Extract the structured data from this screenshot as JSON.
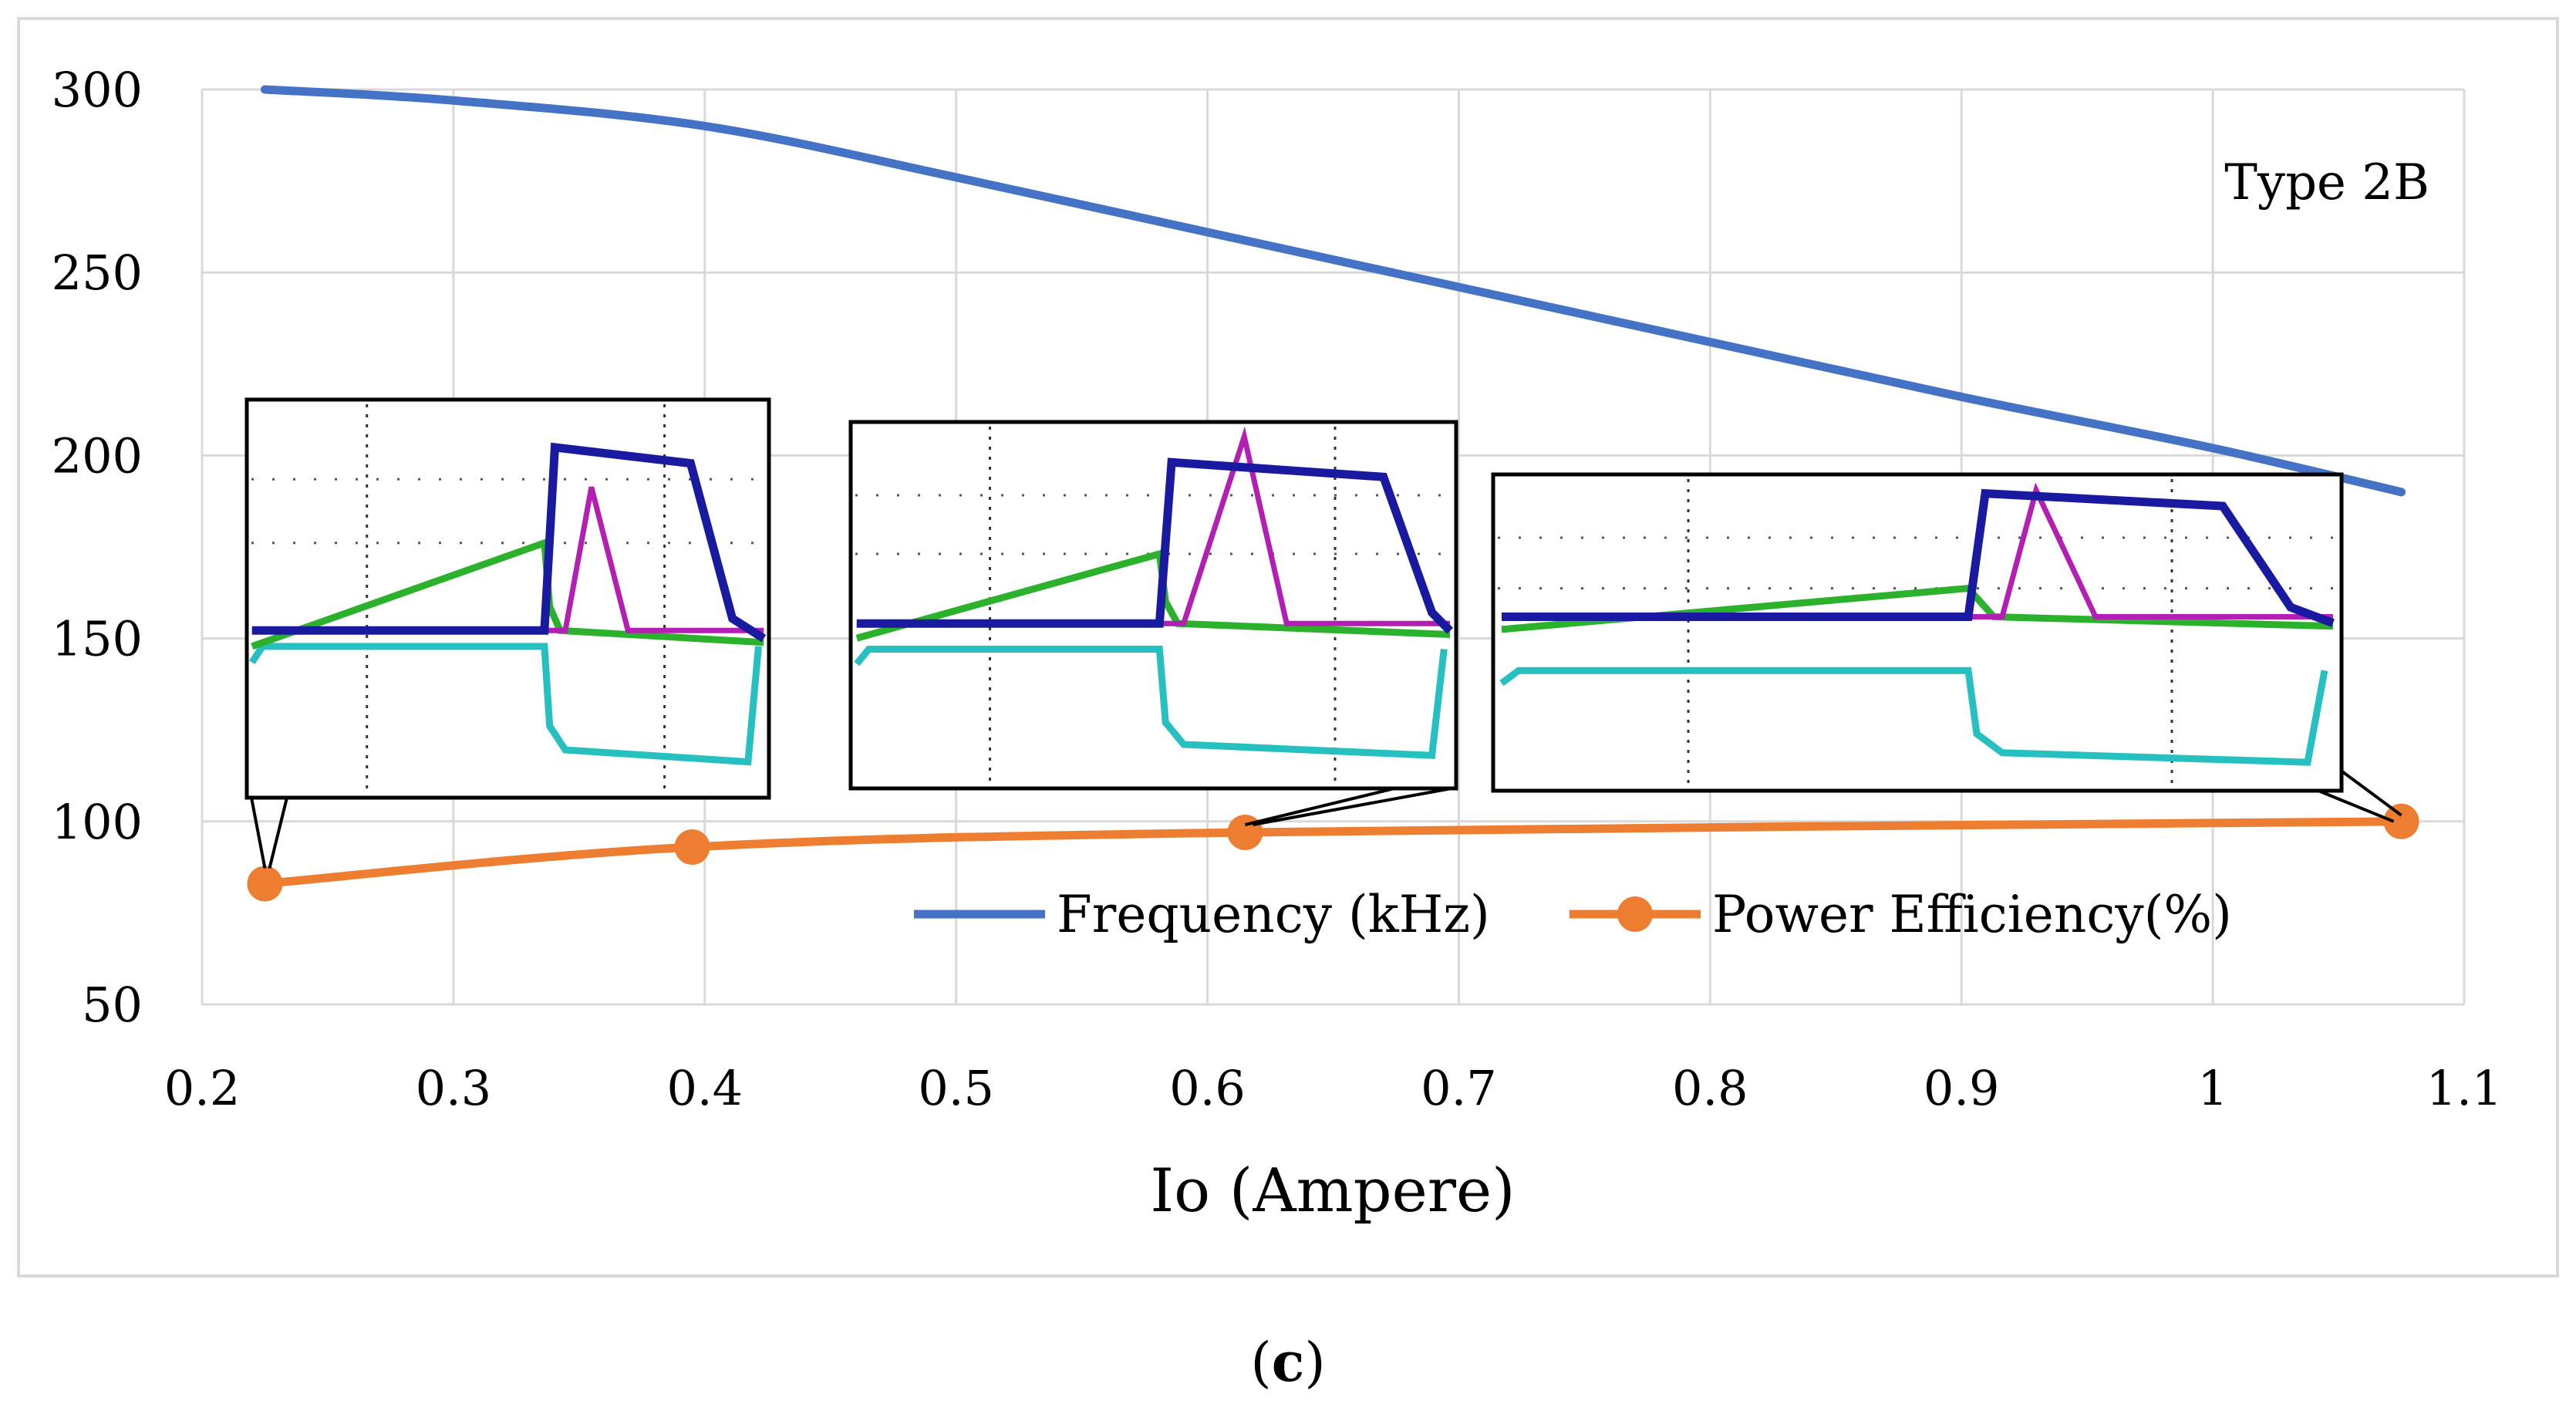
{
  "chart_data": {
    "type": "line",
    "title": "",
    "annotation": "Type 2B",
    "xlabel": "Io (Ampere)",
    "ylabel": "",
    "xlim": [
      0.2,
      1.1
    ],
    "ylim": [
      50,
      300
    ],
    "x_ticks": [
      "0.2",
      "0.3",
      "0.4",
      "0.5",
      "0.6",
      "0.7",
      "0.8",
      "0.9",
      "1",
      "1.1"
    ],
    "y_ticks": [
      "50",
      "100",
      "150",
      "200",
      "250",
      "300"
    ],
    "grid": true,
    "legend_position": "bottom-right",
    "series": [
      {
        "name": "Frequency (kHz)",
        "color": "#4472C4",
        "markers": false,
        "x": [
          0.225,
          0.3,
          0.4,
          0.5,
          0.6,
          0.7,
          0.8,
          0.9,
          1.0,
          1.075
        ],
        "y": [
          300,
          297,
          290,
          276,
          261,
          246,
          231,
          216,
          202,
          190
        ]
      },
      {
        "name": "Power Efficiency(%)",
        "color": "#ED7D31",
        "markers": true,
        "x": [
          0.225,
          0.395,
          0.615,
          1.075
        ],
        "y": [
          83,
          93,
          97,
          100
        ]
      }
    ],
    "insets": [
      {
        "name": "waveform-inset-1",
        "linked_point_x": 0.225
      },
      {
        "name": "waveform-inset-2",
        "linked_point_x": 0.615
      },
      {
        "name": "waveform-inset-3",
        "linked_point_x": 1.075
      }
    ]
  },
  "caption_letter": "c",
  "caption_open": "(",
  "caption_close": ")"
}
